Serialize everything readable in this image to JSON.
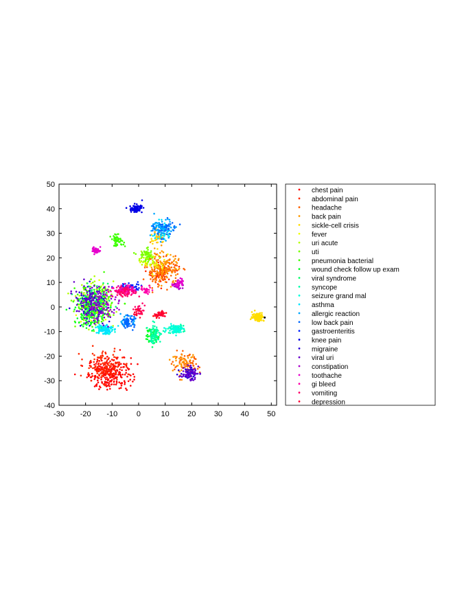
{
  "chart_data": {
    "type": "scatter",
    "title": "",
    "xlabel": "",
    "ylabel": "",
    "xlim": [
      -30,
      52
    ],
    "ylim": [
      -40,
      50
    ],
    "xticks": [
      -30,
      -20,
      -10,
      0,
      10,
      20,
      30,
      40,
      50
    ],
    "yticks": [
      -40,
      -30,
      -20,
      -10,
      0,
      10,
      20,
      30,
      40,
      50
    ],
    "grid": false,
    "legend_position": "right",
    "series": [
      {
        "name": "chest pain",
        "color": "#ff0000",
        "clusters": [
          {
            "x": -11,
            "y": -27,
            "sx": 4.0,
            "sy": 3.2,
            "n": 260
          },
          {
            "x": 8,
            "y": -3,
            "sx": 1.2,
            "sy": 0.6,
            "n": 18
          }
        ]
      },
      {
        "name": "abdominal pain",
        "color": "#ff2a00",
        "clusters": [
          {
            "x": -13,
            "y": -24,
            "sx": 3.5,
            "sy": 3.0,
            "n": 120
          },
          {
            "x": 8,
            "y": 14,
            "sx": 2.5,
            "sy": 2.5,
            "n": 60
          }
        ]
      },
      {
        "name": "headache",
        "color": "#ff6200",
        "clusters": [
          {
            "x": 9,
            "y": 15,
            "sx": 3.2,
            "sy": 3.0,
            "n": 130
          },
          {
            "x": 18,
            "y": -24,
            "sx": 2.4,
            "sy": 2.2,
            "n": 70
          }
        ]
      },
      {
        "name": "back pain",
        "color": "#ff9900",
        "clusters": [
          {
            "x": 9,
            "y": 16,
            "sx": 3.0,
            "sy": 3.0,
            "n": 90
          },
          {
            "x": 17,
            "y": -23,
            "sx": 2.2,
            "sy": 2.0,
            "n": 40
          },
          {
            "x": 8,
            "y": 29,
            "sx": 1.5,
            "sy": 1.5,
            "n": 25
          }
        ]
      },
      {
        "name": "sickle-cell crisis",
        "color": "#ffdd00",
        "clusters": [
          {
            "x": 45,
            "y": -4,
            "sx": 1.1,
            "sy": 0.9,
            "n": 110
          },
          {
            "x": 7,
            "y": 28,
            "sx": 1.3,
            "sy": 1.3,
            "n": 20
          }
        ]
      },
      {
        "name": "fever",
        "color": "#eeff00",
        "clusters": [
          {
            "x": -16,
            "y": 0,
            "sx": 3.5,
            "sy": 4.0,
            "n": 50
          },
          {
            "x": 6,
            "y": 18,
            "sx": 2.0,
            "sy": 2.0,
            "n": 30
          }
        ]
      },
      {
        "name": "uri acute",
        "color": "#b3ff00",
        "clusters": [
          {
            "x": -16,
            "y": 2,
            "sx": 3.5,
            "sy": 4.0,
            "n": 100
          },
          {
            "x": 3,
            "y": 20,
            "sx": 1.8,
            "sy": 1.4,
            "n": 40
          }
        ]
      },
      {
        "name": "uti",
        "color": "#77ff00",
        "clusters": [
          {
            "x": -17,
            "y": 0,
            "sx": 3.3,
            "sy": 4.0,
            "n": 110
          },
          {
            "x": 3,
            "y": 21,
            "sx": 1.6,
            "sy": 1.3,
            "n": 40
          }
        ]
      },
      {
        "name": "pneumonia bacterial",
        "color": "#3cff00",
        "clusters": [
          {
            "x": -17,
            "y": 1,
            "sx": 3.3,
            "sy": 4.0,
            "n": 130
          },
          {
            "x": -8,
            "y": 27,
            "sx": 1.2,
            "sy": 1.1,
            "n": 50
          }
        ]
      },
      {
        "name": "wound check follow up exam",
        "color": "#00ff22",
        "clusters": [
          {
            "x": -18,
            "y": -2,
            "sx": 3.0,
            "sy": 3.5,
            "n": 100
          },
          {
            "x": 5,
            "y": -11,
            "sx": 1.2,
            "sy": 2.0,
            "n": 30
          }
        ]
      },
      {
        "name": "viral syndrome",
        "color": "#00ff66",
        "clusters": [
          {
            "x": -16,
            "y": 1,
            "sx": 3.0,
            "sy": 3.5,
            "n": 90
          },
          {
            "x": 6,
            "y": -12,
            "sx": 1.0,
            "sy": 1.8,
            "n": 40
          }
        ]
      },
      {
        "name": "syncope",
        "color": "#00ffaa",
        "clusters": [
          {
            "x": 6,
            "y": -11,
            "sx": 1.2,
            "sy": 2.0,
            "n": 50
          },
          {
            "x": 14,
            "y": -9,
            "sx": 1.5,
            "sy": 0.8,
            "n": 40
          }
        ]
      },
      {
        "name": "seizure grand mal",
        "color": "#00ffdd",
        "clusters": [
          {
            "x": 14,
            "y": -9,
            "sx": 1.6,
            "sy": 0.9,
            "n": 70
          },
          {
            "x": -13,
            "y": -9,
            "sx": 1.5,
            "sy": 1.0,
            "n": 40
          }
        ]
      },
      {
        "name": "asthma",
        "color": "#00e5ff",
        "clusters": [
          {
            "x": -13,
            "y": -9,
            "sx": 1.6,
            "sy": 1.1,
            "n": 80
          },
          {
            "x": 9,
            "y": 31,
            "sx": 2.0,
            "sy": 2.0,
            "n": 40
          }
        ]
      },
      {
        "name": "allergic reaction",
        "color": "#00a6ff",
        "clusters": [
          {
            "x": 9,
            "y": 32,
            "sx": 2.0,
            "sy": 2.0,
            "n": 80
          },
          {
            "x": -4,
            "y": -6,
            "sx": 1.2,
            "sy": 1.0,
            "n": 40
          }
        ]
      },
      {
        "name": "low back pain",
        "color": "#0066ff",
        "clusters": [
          {
            "x": -4,
            "y": -6,
            "sx": 1.2,
            "sy": 1.2,
            "n": 50
          },
          {
            "x": 10,
            "y": 32,
            "sx": 2.0,
            "sy": 1.8,
            "n": 40
          }
        ]
      },
      {
        "name": "gastroenteritis",
        "color": "#0022ff",
        "clusters": [
          {
            "x": -4,
            "y": 8,
            "sx": 2.5,
            "sy": 0.8,
            "n": 60
          }
        ]
      },
      {
        "name": "knee pain",
        "color": "#0000e6",
        "clusters": [
          {
            "x": -1,
            "y": 40,
            "sx": 1.2,
            "sy": 0.8,
            "n": 80
          }
        ]
      },
      {
        "name": "migraine",
        "color": "#2a00d6",
        "clusters": [
          {
            "x": -18,
            "y": 2,
            "sx": 3.0,
            "sy": 3.5,
            "n": 60
          },
          {
            "x": 19,
            "y": -27,
            "sx": 1.6,
            "sy": 1.2,
            "n": 50
          }
        ]
      },
      {
        "name": "viral uri",
        "color": "#6600cc",
        "clusters": [
          {
            "x": -17,
            "y": 1,
            "sx": 3.5,
            "sy": 4.0,
            "n": 120
          },
          {
            "x": 19,
            "y": -27,
            "sx": 1.7,
            "sy": 1.3,
            "n": 50
          }
        ]
      },
      {
        "name": "constipation",
        "color": "#aa00cc",
        "clusters": [
          {
            "x": -14,
            "y": 1,
            "sx": 3.0,
            "sy": 3.5,
            "n": 60
          },
          {
            "x": 15,
            "y": 9,
            "sx": 1.0,
            "sy": 1.0,
            "n": 20
          }
        ]
      },
      {
        "name": "toothache",
        "color": "#e600cc",
        "clusters": [
          {
            "x": -16,
            "y": 23,
            "sx": 0.8,
            "sy": 0.6,
            "n": 40
          },
          {
            "x": 15,
            "y": 10,
            "sx": 1.0,
            "sy": 1.0,
            "n": 30
          }
        ]
      },
      {
        "name": "gi bleed",
        "color": "#ff00aa",
        "clusters": [
          {
            "x": -5,
            "y": 7,
            "sx": 2.0,
            "sy": 1.0,
            "n": 70
          },
          {
            "x": 3,
            "y": 7,
            "sx": 1.2,
            "sy": 0.8,
            "n": 30
          }
        ]
      },
      {
        "name": "vomiting",
        "color": "#ff0066",
        "clusters": [
          {
            "x": -5,
            "y": 6,
            "sx": 2.2,
            "sy": 1.0,
            "n": 60
          },
          {
            "x": 0,
            "y": -1,
            "sx": 1.2,
            "sy": 1.2,
            "n": 25
          }
        ]
      },
      {
        "name": "depression",
        "color": "#ff0033",
        "clusters": [
          {
            "x": 8,
            "y": -3,
            "sx": 1.0,
            "sy": 0.6,
            "n": 30
          },
          {
            "x": 0,
            "y": -2,
            "sx": 1.0,
            "sy": 1.0,
            "n": 15
          }
        ]
      }
    ]
  }
}
